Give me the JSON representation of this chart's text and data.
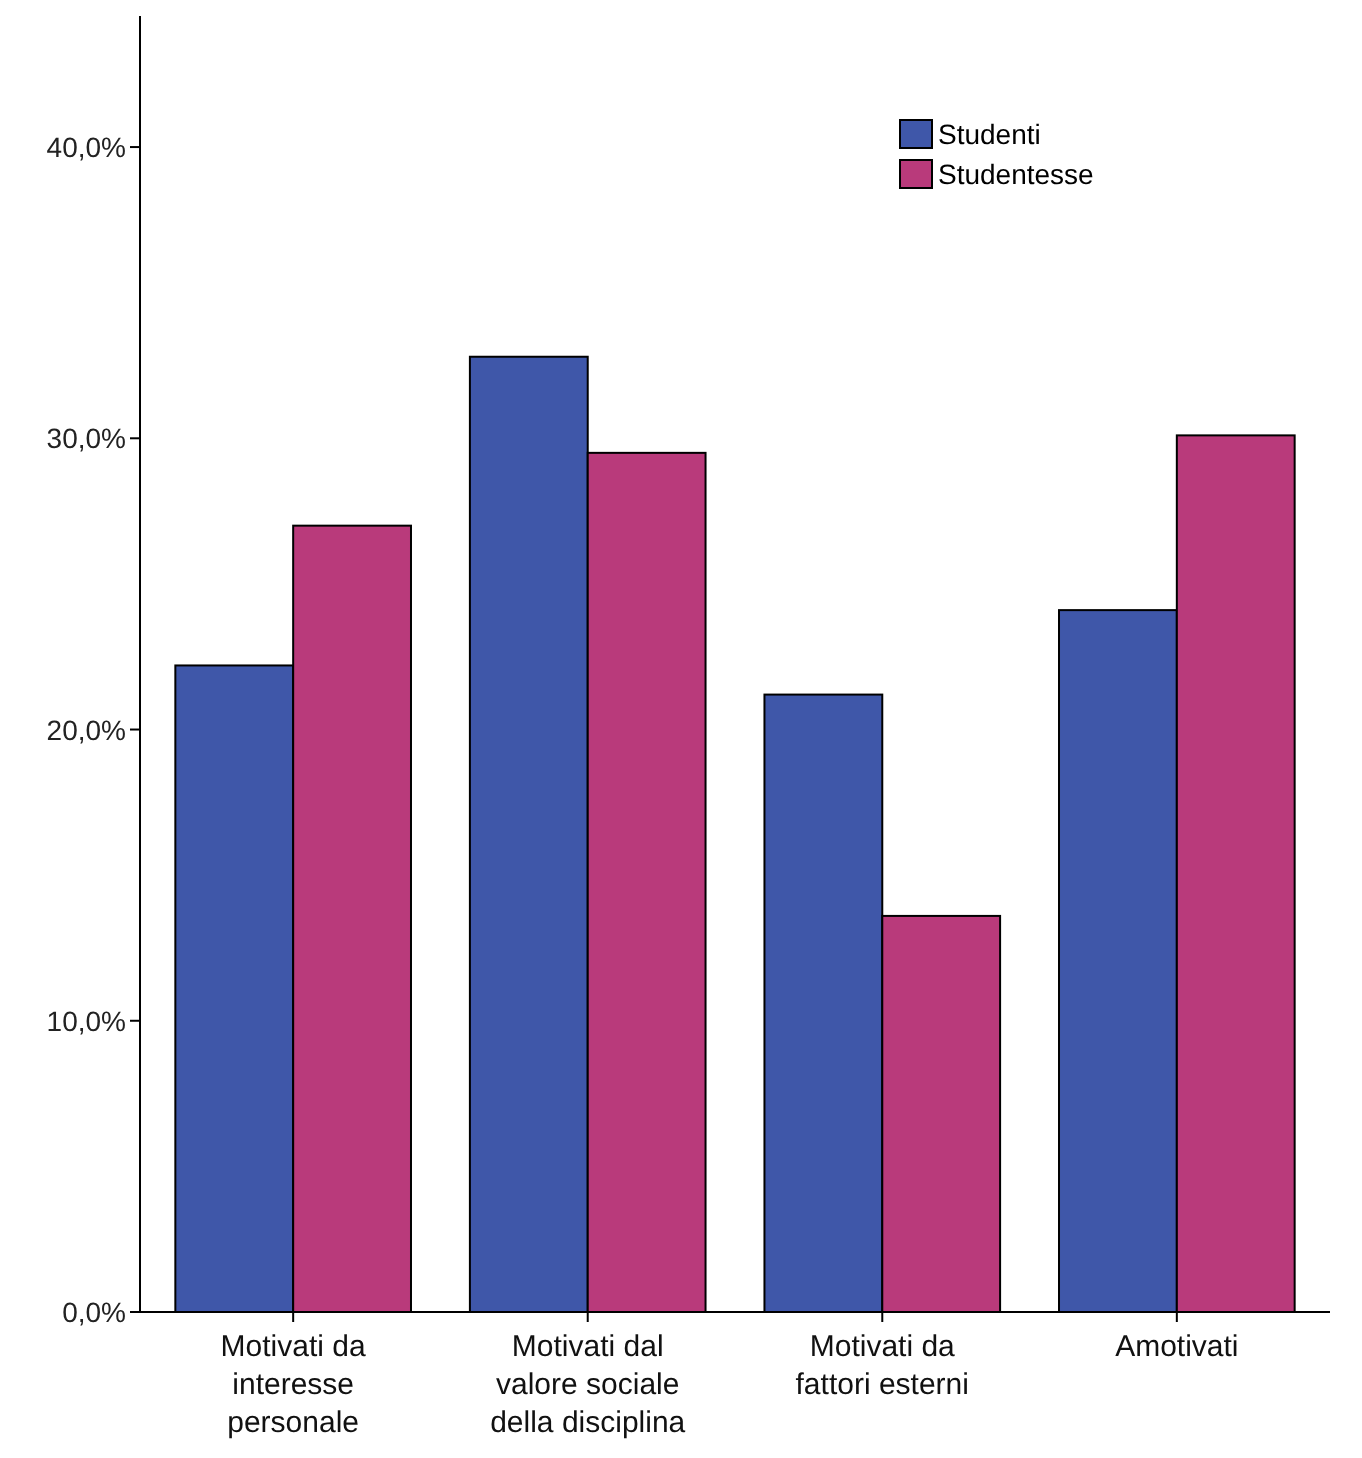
{
  "chart_data": {
    "type": "bar",
    "categories": [
      "Motivati da interesse personale",
      "Motivati dal valore sociale della disciplina",
      "Motivati da fattori esterni",
      "Amotivati"
    ],
    "series": [
      {
        "name": "Studenti",
        "color": "#3f57a9",
        "values": [
          22.2,
          32.8,
          21.2,
          24.1
        ]
      },
      {
        "name": "Studentesse",
        "color": "#b93a7b",
        "values": [
          27.0,
          29.5,
          13.6,
          30.1
        ]
      }
    ],
    "ylim": [
      0,
      44.5
    ],
    "yticks": [
      {
        "value": 0,
        "label": "0,0%"
      },
      {
        "value": 10,
        "label": "10,0%"
      },
      {
        "value": 20,
        "label": "20,0%"
      },
      {
        "value": 30,
        "label": "30,0%"
      },
      {
        "value": 40,
        "label": "40,0%"
      }
    ],
    "grid": false,
    "legend": "top right"
  }
}
